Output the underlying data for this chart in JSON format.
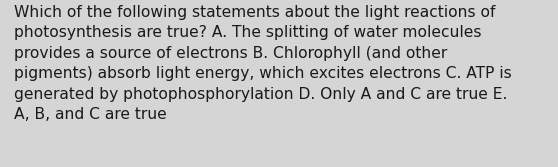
{
  "lines": [
    "Which of the following statements about the light reactions of",
    "photosynthesis are true? A. The splitting of water molecules",
    "provides a source of electrons B. Chlorophyll (and other",
    "pigments) absorb light energy, which excites electrons C. ATP is",
    "generated by photophosphorylation D. Only A and C are true E.",
    "A, B, and C are true"
  ],
  "background_color": "#d5d5d5",
  "text_color": "#1a1a1a",
  "font_size": 11.2,
  "fig_width": 5.58,
  "fig_height": 1.67,
  "dpi": 100
}
